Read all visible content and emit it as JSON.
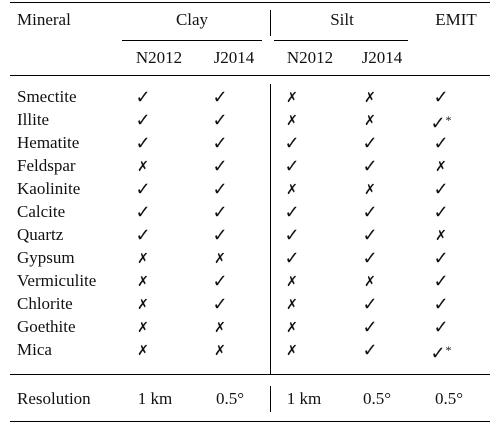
{
  "header": {
    "mineral": "Mineral",
    "clay": "Clay",
    "silt": "Silt",
    "emit": "EMIT",
    "clay_n2012": "N2012",
    "clay_j2014": "J2014",
    "silt_n2012": "N2012",
    "silt_j2014": "J2014"
  },
  "rows": [
    {
      "name": "Smectite",
      "clay_n2012": "✓",
      "clay_j2014": "✓",
      "silt_n2012": "✗",
      "silt_j2014": "✗",
      "emit": "✓"
    },
    {
      "name": "Illite",
      "clay_n2012": "✓",
      "clay_j2014": "✓",
      "silt_n2012": "✗",
      "silt_j2014": "✗",
      "emit": "✓*"
    },
    {
      "name": "Hematite",
      "clay_n2012": "✓",
      "clay_j2014": "✓",
      "silt_n2012": "✓",
      "silt_j2014": "✓",
      "emit": "✓"
    },
    {
      "name": "Feldspar",
      "clay_n2012": "✗",
      "clay_j2014": "✓",
      "silt_n2012": "✓",
      "silt_j2014": "✓",
      "emit": "✗"
    },
    {
      "name": "Kaolinite",
      "clay_n2012": "✓",
      "clay_j2014": "✓",
      "silt_n2012": "✗",
      "silt_j2014": "✗",
      "emit": "✓"
    },
    {
      "name": "Calcite",
      "clay_n2012": "✓",
      "clay_j2014": "✓",
      "silt_n2012": "✓",
      "silt_j2014": "✓",
      "emit": "✓"
    },
    {
      "name": "Quartz",
      "clay_n2012": "✓",
      "clay_j2014": "✓",
      "silt_n2012": "✓",
      "silt_j2014": "✓",
      "emit": "✗"
    },
    {
      "name": "Gypsum",
      "clay_n2012": "✗",
      "clay_j2014": "✗",
      "silt_n2012": "✓",
      "silt_j2014": "✓",
      "emit": "✓"
    },
    {
      "name": "Vermiculite",
      "clay_n2012": "✗",
      "clay_j2014": "✓",
      "silt_n2012": "✗",
      "silt_j2014": "✗",
      "emit": "✓"
    },
    {
      "name": "Chlorite",
      "clay_n2012": "✗",
      "clay_j2014": "✓",
      "silt_n2012": "✗",
      "silt_j2014": "✓",
      "emit": "✓"
    },
    {
      "name": "Goethite",
      "clay_n2012": "✗",
      "clay_j2014": "✗",
      "silt_n2012": "✗",
      "silt_j2014": "✓",
      "emit": "✓"
    },
    {
      "name": "Mica",
      "clay_n2012": "✗",
      "clay_j2014": "✗",
      "silt_n2012": "✗",
      "silt_j2014": "✓",
      "emit": "✓*"
    }
  ],
  "resolution": {
    "label": "Resolution",
    "clay_n2012": "1 km",
    "clay_j2014": "0.5°",
    "silt_n2012": "1 km",
    "silt_j2014": "0.5°",
    "emit": "0.5°"
  }
}
